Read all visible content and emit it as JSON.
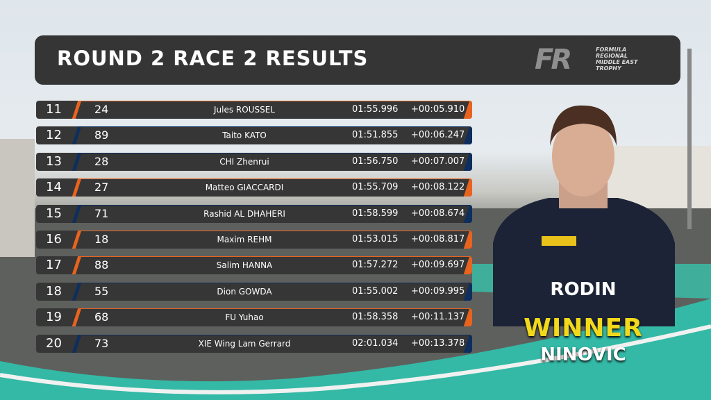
{
  "header": {
    "title": "ROUND 2 RACE 2 RESULTS",
    "logo": {
      "mark": "FR",
      "lines": [
        "FORMULA",
        "REGIONAL",
        "MIDDLE EAST",
        "TROPHY"
      ]
    }
  },
  "colors": {
    "orange": "#e8641e",
    "blue": "#0e2e5e",
    "panel": "#363636"
  },
  "results": [
    {
      "pos": "11",
      "number": "24",
      "driver": "Jules ROUSSEL",
      "time": "01:55.996",
      "gap": "+00:05.910",
      "accent": "orange"
    },
    {
      "pos": "12",
      "number": "89",
      "driver": "Taito KATO",
      "time": "01:51.855",
      "gap": "+00:06.247",
      "accent": "blue"
    },
    {
      "pos": "13",
      "number": "28",
      "driver": "CHI Zhenrui",
      "time": "01:56.750",
      "gap": "+00:07.007",
      "accent": "blue"
    },
    {
      "pos": "14",
      "number": "27",
      "driver": "Matteo GIACCARDI",
      "time": "01:55.709",
      "gap": "+00:08.122",
      "accent": "orange"
    },
    {
      "pos": "15",
      "number": "71",
      "driver": "Rashid AL DHAHERI",
      "time": "01:58.599",
      "gap": "+00:08.674",
      "accent": "blue"
    },
    {
      "pos": "16",
      "number": "18",
      "driver": "Maxim REHM",
      "time": "01:53.015",
      "gap": "+00:08.817",
      "accent": "orange"
    },
    {
      "pos": "17",
      "number": "88",
      "driver": "Salim HANNA",
      "time": "01:57.272",
      "gap": "+00:09.697",
      "accent": "orange"
    },
    {
      "pos": "18",
      "number": "55",
      "driver": "Dion GOWDA",
      "time": "01:55.002",
      "gap": "+00:09.995",
      "accent": "blue"
    },
    {
      "pos": "19",
      "number": "68",
      "driver": "FU Yuhao",
      "time": "01:58.358",
      "gap": "+00:11.137",
      "accent": "orange"
    },
    {
      "pos": "20",
      "number": "73",
      "driver": "XIE Wing Lam Gerrard",
      "time": "02:01.034",
      "gap": "+00:13.378",
      "accent": "blue"
    }
  ],
  "winner": {
    "label": "WINNER",
    "name": "NINOVIC",
    "suit_text": "RODIN"
  }
}
